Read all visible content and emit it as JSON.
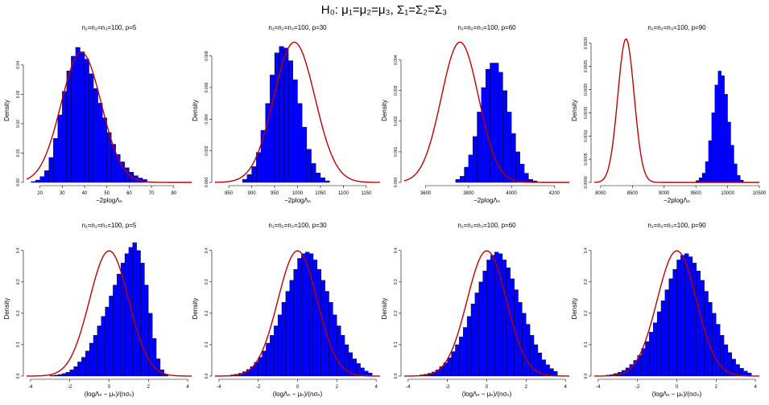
{
  "figure": {
    "title": "H₀: μ₁=μ₂=μ₃,  Σ₁=Σ₂=Σ₃"
  },
  "colors": {
    "hist_fill": "#0000ff",
    "hist_stroke": "#000000",
    "curve": "#c00000"
  },
  "chart_data": [
    {
      "type": "histogram",
      "title": "n₁=n₂=n₃=100, p=5",
      "xlabel": "−2plogΛₙ",
      "ylabel": "Density",
      "xlim": [
        14,
        88
      ],
      "ylim": [
        0,
        0.049
      ],
      "xticks": [
        20,
        30,
        40,
        50,
        60,
        70,
        80
      ],
      "yticks": [
        0.0,
        0.01,
        0.02,
        0.03,
        0.04
      ],
      "yticklabels": [
        "0.00",
        "0.01",
        "0.02",
        "0.03",
        "0.04"
      ],
      "bin_start": 16,
      "bin_width": 2,
      "values": [
        0.0003,
        0.0008,
        0.002,
        0.004,
        0.0085,
        0.015,
        0.023,
        0.031,
        0.038,
        0.043,
        0.046,
        0.0445,
        0.042,
        0.037,
        0.032,
        0.027,
        0.022,
        0.017,
        0.013,
        0.0095,
        0.007,
        0.005,
        0.0035,
        0.0023,
        0.0015,
        0.001
      ],
      "curve": {
        "kind": "normal",
        "mean": 38.5,
        "sd": 9.0
      }
    },
    {
      "type": "histogram",
      "title": "n₁=n₂=n₃=100, p=30",
      "xlabel": "−2plogΛₙ",
      "ylabel": "Density",
      "xlim": [
        820,
        1180
      ],
      "ylim": [
        0,
        0.0091
      ],
      "xticks": [
        850,
        900,
        950,
        1000,
        1050,
        1100,
        1150
      ],
      "yticks": [
        0.0,
        0.002,
        0.004,
        0.006,
        0.008
      ],
      "yticklabels": [
        "0.000",
        "0.002",
        "0.004",
        "0.006",
        "0.008"
      ],
      "bin_start": 880,
      "bin_width": 10,
      "values": [
        0.0002,
        0.0005,
        0.001,
        0.0019,
        0.0033,
        0.005,
        0.0068,
        0.0082,
        0.0086,
        0.0085,
        0.0077,
        0.0065,
        0.005,
        0.0035,
        0.0021,
        0.0012,
        0.0006,
        0.0003,
        0.0001
      ],
      "curve": {
        "kind": "normal",
        "mean": 993,
        "sd": 45
      }
    },
    {
      "type": "histogram",
      "title": "n₁=n₂=n₃=100, p=60",
      "xlabel": "−2plogΛₙ",
      "ylabel": "Density",
      "xlim": [
        3500,
        4270
      ],
      "ylim": [
        0,
        0.0047
      ],
      "xticks": [
        3600,
        3800,
        4000,
        4200
      ],
      "yticks": [
        0.0,
        0.001,
        0.002,
        0.003,
        0.004
      ],
      "yticklabels": [
        "0.000",
        "0.001",
        "0.002",
        "0.003",
        "0.004"
      ],
      "bin_start": 3740,
      "bin_width": 20,
      "values": [
        0.0001,
        0.0002,
        0.0005,
        0.0009,
        0.0015,
        0.0023,
        0.0031,
        0.0037,
        0.0039,
        0.0039,
        0.0036,
        0.003,
        0.0023,
        0.0016,
        0.001,
        0.0006,
        0.0003,
        0.0001,
        5e-05
      ],
      "curve": {
        "kind": "normal",
        "mean": 3760,
        "sd": 87
      }
    },
    {
      "type": "histogram",
      "title": "n₁=n₂=n₃=100, p=90",
      "xlabel": "−2plogΛₙ",
      "ylabel": "Density",
      "xlim": [
        7900,
        10500
      ],
      "ylim": [
        0,
        0.0031
      ],
      "xticks": [
        8000,
        8500,
        9000,
        9500,
        10000,
        10500
      ],
      "yticks": [
        0.0,
        0.0005,
        0.001,
        0.0015,
        0.002,
        0.0025,
        0.003
      ],
      "yticklabels": [
        "0.0000",
        "0.0005",
        "0.0010",
        "0.0015",
        "0.0020",
        "0.0025",
        "0.0030"
      ],
      "bin_start": 9500,
      "bin_width": 50,
      "values": [
        4e-05,
        0.0001,
        0.0002,
        0.00045,
        0.0009,
        0.0015,
        0.0021,
        0.0024,
        0.0023,
        0.0019,
        0.0013,
        0.0008,
        0.0004,
        0.00015,
        5e-05
      ],
      "curve": {
        "kind": "normal",
        "mean": 8400,
        "sd": 129
      }
    },
    {
      "type": "histogram",
      "title": "n₁=n₂=n₃=100, p=5",
      "xlabel": "(logΛₙ − μₙ)/(nσₙ)",
      "ylabel": "Density",
      "xlim": [
        -4.2,
        4.2
      ],
      "ylim": [
        0,
        0.43
      ],
      "xticks": [
        -4,
        -2,
        0,
        2,
        4
      ],
      "yticks": [
        0.0,
        0.1,
        0.2,
        0.3,
        0.4
      ],
      "yticklabels": [
        "0.0",
        "0.1",
        "0.2",
        "0.3",
        "0.4"
      ],
      "bin_start": -3.0,
      "bin_width": 0.2,
      "values": [
        0.002,
        0.003,
        0.005,
        0.008,
        0.012,
        0.02,
        0.03,
        0.045,
        0.06,
        0.08,
        0.105,
        0.13,
        0.16,
        0.19,
        0.22,
        0.255,
        0.29,
        0.325,
        0.36,
        0.39,
        0.41,
        0.425,
        0.4,
        0.36,
        0.29,
        0.2,
        0.12,
        0.055,
        0.02,
        0.006
      ],
      "curve": {
        "kind": "normal",
        "mean": 0,
        "sd": 1
      }
    },
    {
      "type": "histogram",
      "title": "n₁=n₂=n₃=100, p=30",
      "xlabel": "(logΛₙ − μₙ)/(nσₙ)",
      "ylabel": "Density",
      "xlim": [
        -4.2,
        4.2
      ],
      "ylim": [
        0,
        0.43
      ],
      "xticks": [
        -4,
        -2,
        0,
        2,
        4
      ],
      "yticks": [
        0.0,
        0.1,
        0.2,
        0.3,
        0.4
      ],
      "yticklabels": [
        "0.0",
        "0.1",
        "0.2",
        "0.3",
        "0.4"
      ],
      "bin_start": -3.6,
      "bin_width": 0.2,
      "values": [
        0.002,
        0.004,
        0.006,
        0.009,
        0.014,
        0.021,
        0.03,
        0.044,
        0.06,
        0.08,
        0.105,
        0.13,
        0.16,
        0.195,
        0.235,
        0.27,
        0.305,
        0.34,
        0.375,
        0.39,
        0.395,
        0.39,
        0.37,
        0.34,
        0.305,
        0.27,
        0.235,
        0.195,
        0.16,
        0.13,
        0.1,
        0.075,
        0.055,
        0.04,
        0.026,
        0.016,
        0.01
      ],
      "curve": {
        "kind": "normal",
        "mean": 0,
        "sd": 1
      }
    },
    {
      "type": "histogram",
      "title": "n₁=n₂=n₃=100, p=60",
      "xlabel": "(logΛₙ − μₙ)/(nσₙ)",
      "ylabel": "Density",
      "xlim": [
        -4.2,
        4.2
      ],
      "ylim": [
        0,
        0.43
      ],
      "xticks": [
        -4,
        -2,
        0,
        2,
        4
      ],
      "yticks": [
        0.0,
        0.1,
        0.2,
        0.3,
        0.4
      ],
      "yticklabels": [
        "0.0",
        "0.1",
        "0.2",
        "0.3",
        "0.4"
      ],
      "bin_start": -3.4,
      "bin_width": 0.2,
      "values": [
        0.004,
        0.006,
        0.009,
        0.013,
        0.02,
        0.03,
        0.042,
        0.058,
        0.078,
        0.1,
        0.125,
        0.155,
        0.19,
        0.23,
        0.265,
        0.3,
        0.335,
        0.37,
        0.385,
        0.395,
        0.39,
        0.37,
        0.345,
        0.31,
        0.275,
        0.235,
        0.2,
        0.165,
        0.13,
        0.1,
        0.074,
        0.052,
        0.036,
        0.024,
        0.015
      ],
      "curve": {
        "kind": "normal",
        "mean": 0,
        "sd": 1
      }
    },
    {
      "type": "histogram",
      "title": "n₁=n₂=n₃=100, p=90",
      "xlabel": "(logΛₙ − μₙ)/(nσₙ)",
      "ylabel": "Density",
      "xlim": [
        -4.2,
        4.2
      ],
      "ylim": [
        0,
        0.43
      ],
      "xticks": [
        -4,
        -2,
        0,
        2,
        4
      ],
      "yticks": [
        0.0,
        0.1,
        0.2,
        0.3,
        0.4
      ],
      "yticklabels": [
        "0.0",
        "0.1",
        "0.2",
        "0.3",
        "0.4"
      ],
      "bin_start": -3.6,
      "bin_width": 0.2,
      "values": [
        0.003,
        0.005,
        0.008,
        0.012,
        0.018,
        0.026,
        0.037,
        0.05,
        0.066,
        0.088,
        0.11,
        0.14,
        0.17,
        0.205,
        0.24,
        0.275,
        0.31,
        0.34,
        0.37,
        0.385,
        0.39,
        0.38,
        0.36,
        0.335,
        0.305,
        0.27,
        0.235,
        0.2,
        0.165,
        0.13,
        0.1,
        0.075,
        0.054,
        0.037,
        0.025,
        0.016,
        0.01
      ],
      "curve": {
        "kind": "normal",
        "mean": 0,
        "sd": 1
      }
    }
  ]
}
